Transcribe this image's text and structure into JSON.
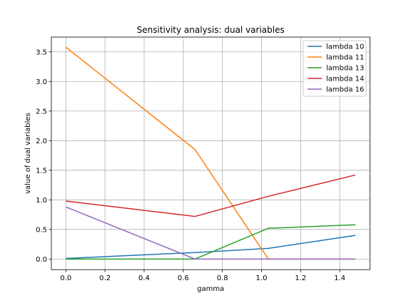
{
  "chart_data": {
    "type": "line",
    "title": "Sensitivity analysis: dual variables",
    "xlabel": "gamma",
    "ylabel": "value of dual variables",
    "xlim": [
      -0.074,
      1.554
    ],
    "ylim": [
      -0.179,
      3.75
    ],
    "xticks": [
      0.0,
      0.2,
      0.4,
      0.6,
      0.8,
      1.0,
      1.2,
      1.4
    ],
    "xtick_labels": [
      "0.0",
      "0.2",
      "0.4",
      "0.6",
      "0.8",
      "1.0",
      "1.2",
      "1.4"
    ],
    "yticks": [
      0.0,
      0.5,
      1.0,
      1.5,
      2.0,
      2.5,
      3.0,
      3.5
    ],
    "ytick_labels": [
      "0.0",
      "0.5",
      "1.0",
      "1.5",
      "2.0",
      "2.5",
      "3.0",
      "3.5"
    ],
    "grid": true,
    "legend_position": "top-right",
    "x": [
      0.0,
      0.66,
      1.035,
      1.48
    ],
    "series": [
      {
        "name": "lambda 10",
        "color": "#1f77b4",
        "values": [
          0.01,
          0.11,
          0.18,
          0.4
        ]
      },
      {
        "name": "lambda 11",
        "color": "#ff7f0e",
        "values": [
          3.58,
          1.85,
          0.0,
          0.0
        ]
      },
      {
        "name": "lambda 13",
        "color": "#2ca02c",
        "values": [
          0.0,
          0.0,
          0.52,
          0.58
        ]
      },
      {
        "name": "lambda 14",
        "color": "#d62728",
        "values": [
          0.98,
          0.72,
          1.06,
          1.42
        ]
      },
      {
        "name": "lambda 16",
        "color": "#9467bd",
        "values": [
          0.88,
          0.0,
          0.0,
          0.0
        ]
      }
    ]
  }
}
